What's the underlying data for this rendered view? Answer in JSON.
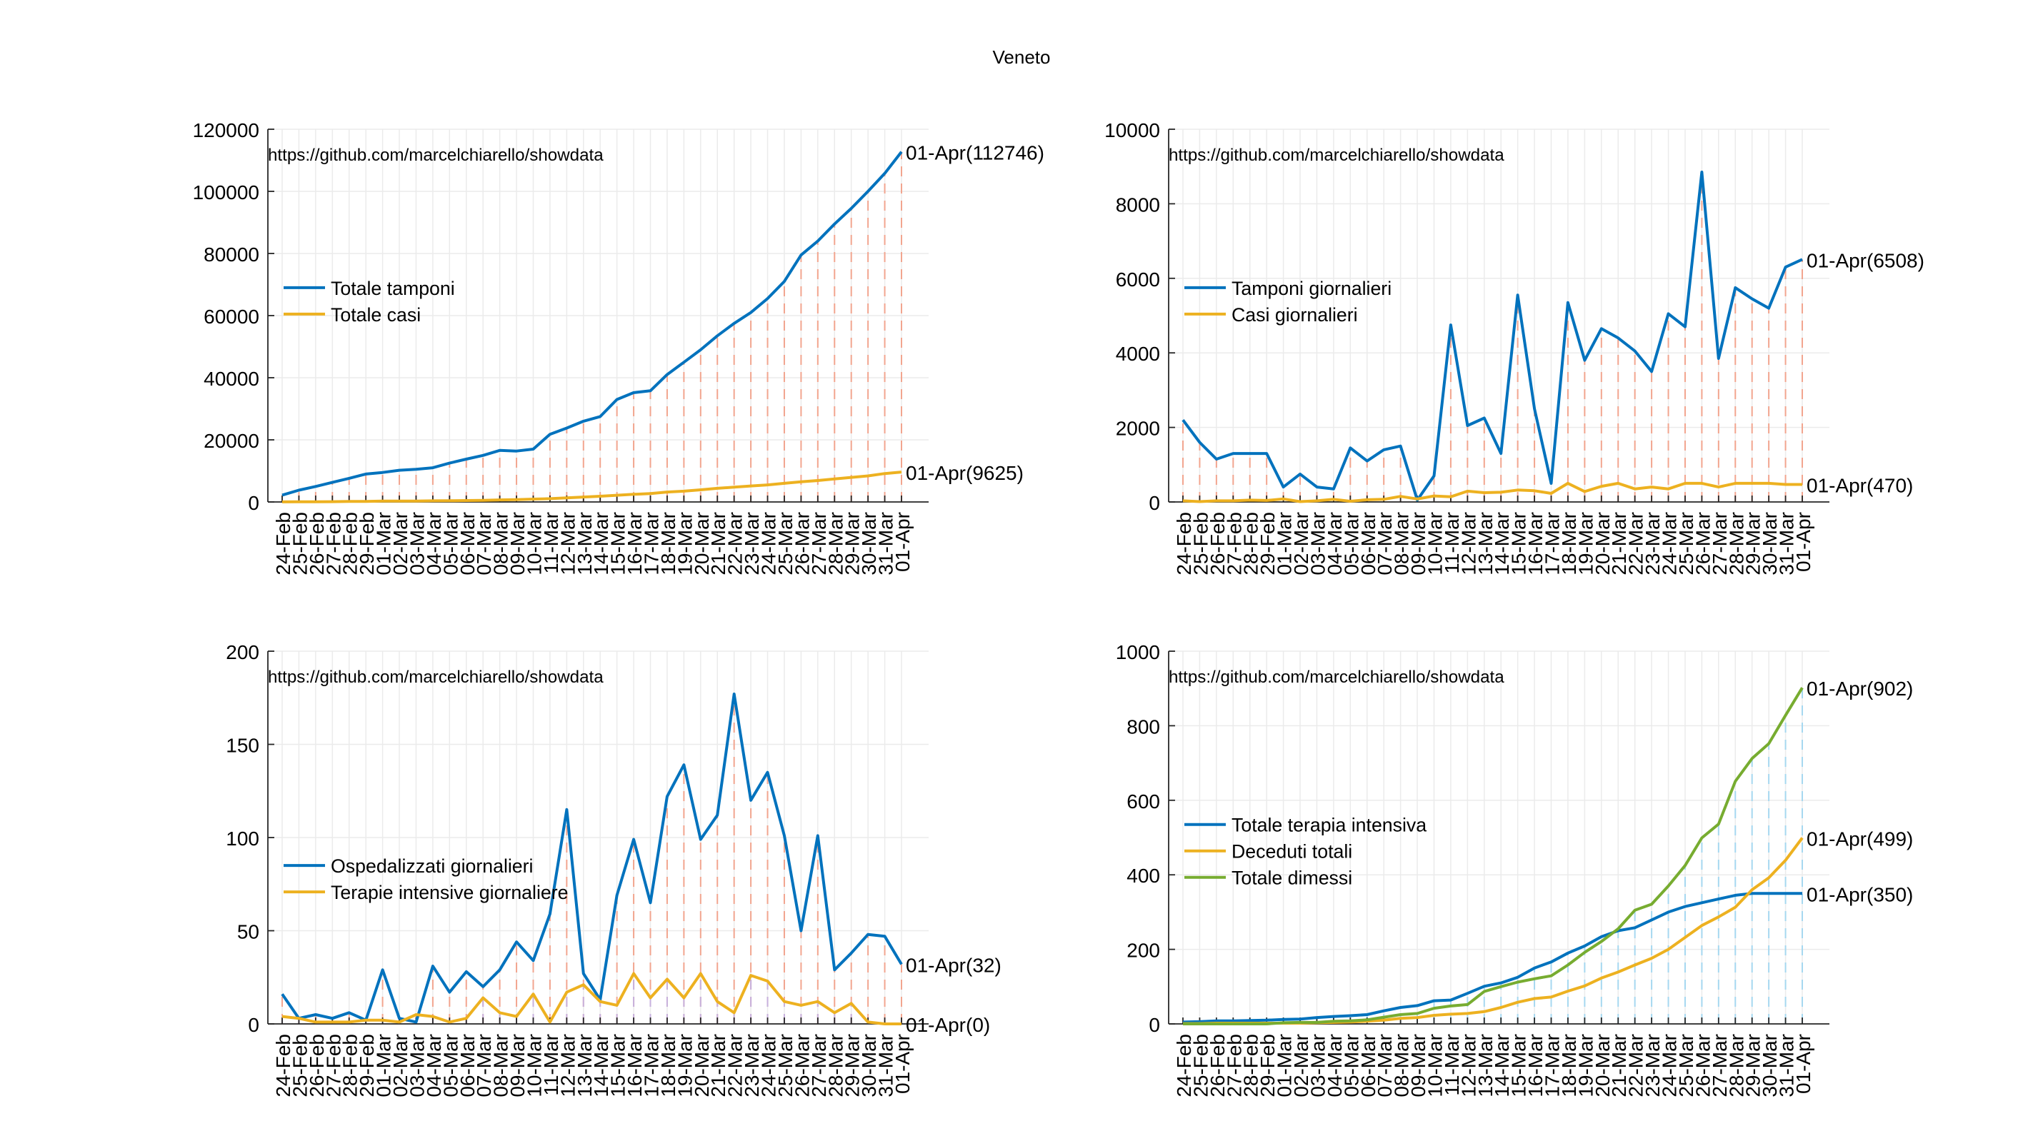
{
  "figure": {
    "title": "Veneto",
    "watermark": "https://github.com/marcelchiarello/showdata"
  },
  "colors": {
    "blue": "#0072bd",
    "orange": "#edb120",
    "green": "#77ac30",
    "stem_red": "#f2a58f",
    "stem_purple": "#c7b2de",
    "stem_cyan": "#a6d8f0",
    "grid": "#ebebeb",
    "axis": "#262626",
    "text": "#000000"
  },
  "dates": [
    "24-Feb",
    "25-Feb",
    "26-Feb",
    "27-Feb",
    "28-Feb",
    "29-Feb",
    "01-Mar",
    "02-Mar",
    "03-Mar",
    "04-Mar",
    "05-Mar",
    "06-Mar",
    "07-Mar",
    "08-Mar",
    "09-Mar",
    "10-Mar",
    "11-Mar",
    "12-Mar",
    "13-Mar",
    "14-Mar",
    "15-Mar",
    "16-Mar",
    "17-Mar",
    "18-Mar",
    "19-Mar",
    "20-Mar",
    "21-Mar",
    "22-Mar",
    "23-Mar",
    "24-Mar",
    "25-Mar",
    "26-Mar",
    "27-Mar",
    "28-Mar",
    "29-Mar",
    "30-Mar",
    "31-Mar",
    "01-Apr"
  ],
  "chart_data": [
    {
      "type": "line",
      "title": "",
      "xlabel": "",
      "ylabel": "",
      "ylim": [
        0,
        120000
      ],
      "yticks": [
        "0",
        "20000",
        "40000",
        "60000",
        "80000",
        "100000",
        "120000"
      ],
      "grid": true,
      "legend": "middle-left",
      "stem_color": "stem_red",
      "series": [
        {
          "name": "Totale tamponi",
          "color": "blue",
          "values": [
            2200,
            3800,
            5000,
            6300,
            7600,
            9000,
            9500,
            10200,
            10500,
            11000,
            12500,
            13800,
            15000,
            16600,
            16400,
            17000,
            21800,
            23800,
            26000,
            27500,
            33000,
            35200,
            35800,
            41000,
            45000,
            49000,
            53500,
            57500,
            61000,
            65500,
            71000,
            79500,
            84000,
            89500,
            94500,
            100000,
            105800,
            112746
          ],
          "end_label": "01-Apr(112746)"
        },
        {
          "name": "Totale casi",
          "color": "orange",
          "values": [
            30,
            40,
            70,
            100,
            150,
            190,
            270,
            270,
            300,
            370,
            390,
            450,
            520,
            670,
            750,
            910,
            1050,
            1340,
            1590,
            1850,
            2170,
            2470,
            2700,
            3200,
            3480,
            3900,
            4400,
            4750,
            5150,
            5500,
            6000,
            6500,
            6900,
            7400,
            7900,
            8400,
            9150,
            9625
          ],
          "end_label": "01-Apr(9625)"
        }
      ]
    },
    {
      "type": "line",
      "title": "",
      "xlabel": "",
      "ylabel": "",
      "ylim": [
        0,
        10000
      ],
      "yticks": [
        "0",
        "2000",
        "4000",
        "6000",
        "8000",
        "10000"
      ],
      "grid": true,
      "legend": "middle-left",
      "stem_color": "stem_red",
      "series": [
        {
          "name": "Tamponi giornalieri",
          "color": "blue",
          "values": [
            2200,
            1600,
            1150,
            1300,
            1300,
            1300,
            400,
            750,
            400,
            350,
            1450,
            1100,
            1400,
            1500,
            50,
            700,
            4750,
            2050,
            2250,
            1300,
            5550,
            2500,
            500,
            5350,
            3800,
            4650,
            4400,
            4050,
            3500,
            5050,
            4700,
            8850,
            3850,
            5750,
            5450,
            5200,
            6300,
            6508
          ],
          "end_label": "01-Apr(6508)"
        },
        {
          "name": "Casi giornalieri",
          "color": "orange",
          "values": [
            30,
            10,
            30,
            30,
            50,
            40,
            80,
            10,
            30,
            70,
            20,
            60,
            70,
            150,
            80,
            160,
            140,
            290,
            250,
            260,
            320,
            300,
            230,
            500,
            280,
            420,
            500,
            350,
            400,
            350,
            500,
            500,
            400,
            500,
            500,
            500,
            470,
            470
          ],
          "end_label": "01-Apr(470)"
        }
      ]
    },
    {
      "type": "line",
      "title": "",
      "xlabel": "",
      "ylabel": "",
      "ylim": [
        0,
        200
      ],
      "yticks": [
        "0",
        "50",
        "100",
        "150",
        "200"
      ],
      "grid": true,
      "legend": "middle-left",
      "stem_color": "stem_red",
      "stem_color_alt": "stem_purple",
      "series": [
        {
          "name": "Ospedalizzati giornalieri",
          "color": "blue",
          "values": [
            16,
            3,
            5,
            3,
            6,
            2,
            29,
            3,
            1,
            31,
            17,
            28,
            20,
            29,
            44,
            34,
            59,
            115,
            27,
            13,
            69,
            99,
            65,
            122,
            139,
            99,
            112,
            177,
            120,
            135,
            101,
            50,
            101,
            29,
            38,
            48,
            47,
            32
          ],
          "end_label": "01-Apr(32)"
        },
        {
          "name": "Terapie intensive giornaliere",
          "color": "orange",
          "values": [
            4,
            3,
            1,
            1,
            1,
            2,
            2,
            1,
            5,
            4,
            1,
            3,
            14,
            6,
            4,
            16,
            1,
            17,
            21,
            12,
            10,
            27,
            14,
            24,
            14,
            27,
            12,
            6,
            26,
            23,
            12,
            10,
            12,
            6,
            11,
            1,
            0,
            0
          ],
          "end_label": "01-Apr(0)"
        }
      ]
    },
    {
      "type": "line",
      "title": "",
      "xlabel": "",
      "ylabel": "",
      "ylim": [
        0,
        1000
      ],
      "yticks": [
        "0",
        "200",
        "400",
        "600",
        "800",
        "1000"
      ],
      "grid": true,
      "legend": "middle-left",
      "stem_color": "stem_cyan",
      "series": [
        {
          "name": "Totale terapia intensiva",
          "color": "blue",
          "values": [
            5,
            6,
            8,
            8,
            9,
            10,
            12,
            13,
            17,
            20,
            22,
            25,
            35,
            44,
            49,
            62,
            64,
            82,
            101,
            110,
            125,
            150,
            166,
            190,
            209,
            234,
            250,
            258,
            279,
            300,
            315,
            325,
            335,
            345,
            350,
            350,
            350,
            350
          ],
          "end_label": "01-Apr(350)"
        },
        {
          "name": "Deceduti totali",
          "color": "orange",
          "values": [
            1,
            1,
            2,
            2,
            2,
            2,
            2,
            2,
            3,
            4,
            5,
            7,
            10,
            15,
            17,
            23,
            26,
            28,
            33,
            44,
            58,
            68,
            72,
            88,
            102,
            123,
            139,
            158,
            176,
            200,
            232,
            264,
            287,
            313,
            360,
            392,
            439,
            499
          ],
          "end_label": "01-Apr(499)"
        },
        {
          "name": "Totale dimessi",
          "color": "green",
          "values": [
            0,
            0,
            0,
            0,
            0,
            0,
            3,
            4,
            4,
            7,
            8,
            11,
            18,
            25,
            28,
            42,
            48,
            52,
            87,
            100,
            112,
            121,
            129,
            158,
            192,
            221,
            255,
            305,
            321,
            370,
            425,
            499,
            536,
            651,
            712,
            752,
            828,
            902
          ],
          "end_label": "01-Apr(902)"
        }
      ]
    }
  ]
}
